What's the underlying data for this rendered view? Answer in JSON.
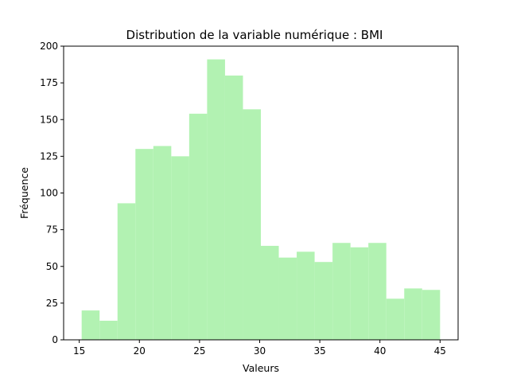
{
  "chart_data": {
    "type": "bar",
    "title": "Distribution de la variable numérique : BMI",
    "xlabel": "Valeurs",
    "ylabel": "Fréquence",
    "bin_edges": [
      15.2,
      16.69,
      18.18,
      19.67,
      21.16,
      22.65,
      24.14,
      25.63,
      27.12,
      28.61,
      30.1,
      31.59,
      33.08,
      34.57,
      36.06,
      37.55,
      39.04,
      40.53,
      42.02,
      43.51,
      45.0
    ],
    "counts": [
      20,
      13,
      93,
      130,
      132,
      125,
      154,
      191,
      180,
      157,
      64,
      56,
      60,
      53,
      66,
      63,
      66,
      28,
      35,
      34
    ],
    "xlim": [
      13.7,
      46.5
    ],
    "ylim": [
      0,
      200
    ],
    "xticks": [
      15,
      20,
      25,
      30,
      35,
      40,
      45
    ],
    "yticks": [
      0,
      25,
      50,
      75,
      100,
      125,
      150,
      175,
      200
    ],
    "bar_color": "#b2f2b2",
    "grid": false
  }
}
